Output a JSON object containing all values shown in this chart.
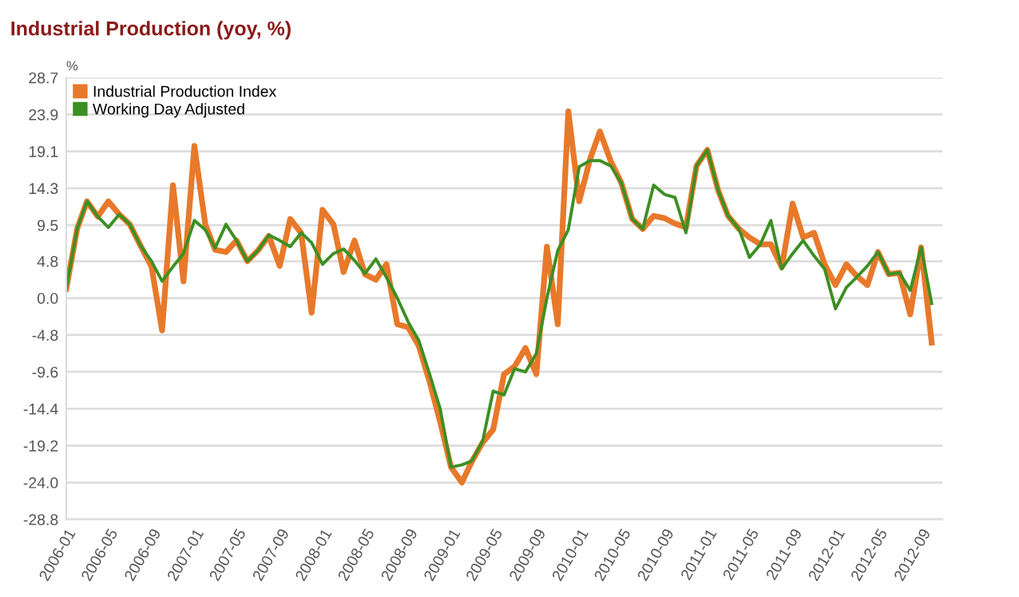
{
  "chart_data": {
    "type": "line",
    "title": "Industrial Production (yoy, %)",
    "ylabel": "%",
    "x": [
      "2006-01",
      "2006-02",
      "2006-03",
      "2006-04",
      "2006-05",
      "2006-06",
      "2006-07",
      "2006-08",
      "2006-09",
      "2006-10",
      "2006-11",
      "2006-12",
      "2007-01",
      "2007-02",
      "2007-03",
      "2007-04",
      "2007-05",
      "2007-06",
      "2007-07",
      "2007-08",
      "2007-09",
      "2007-10",
      "2007-11",
      "2007-12",
      "2008-01",
      "2008-02",
      "2008-03",
      "2008-04",
      "2008-05",
      "2008-06",
      "2008-07",
      "2008-08",
      "2008-09",
      "2008-10",
      "2008-11",
      "2008-12",
      "2009-01",
      "2009-02",
      "2009-03",
      "2009-04",
      "2009-05",
      "2009-06",
      "2009-07",
      "2009-08",
      "2009-09",
      "2009-10",
      "2009-11",
      "2009-12",
      "2010-01",
      "2010-02",
      "2010-03",
      "2010-04",
      "2010-05",
      "2010-06",
      "2010-07",
      "2010-08",
      "2010-09",
      "2010-10",
      "2010-11",
      "2010-12",
      "2011-01",
      "2011-02",
      "2011-03",
      "2011-04",
      "2011-05",
      "2011-06",
      "2011-07",
      "2011-08",
      "2011-09",
      "2011-10",
      "2011-11",
      "2011-12",
      "2012-01",
      "2012-02",
      "2012-03",
      "2012-04",
      "2012-05",
      "2012-06",
      "2012-07",
      "2012-08",
      "2012-09",
      "2012-10"
    ],
    "series": [
      {
        "name": "Industrial Production Index",
        "color": "#e8792a",
        "values": [
          1.2,
          9.0,
          12.6,
          10.6,
          12.6,
          10.9,
          9.6,
          6.8,
          4.1,
          -4.2,
          14.7,
          2.2,
          19.8,
          9.6,
          6.3,
          6.0,
          7.5,
          4.8,
          6.2,
          8.1,
          4.2,
          10.3,
          8.5,
          -1.9,
          11.5,
          9.6,
          3.4,
          7.5,
          3.1,
          2.4,
          4.4,
          -3.4,
          -3.8,
          -6.2,
          -10.9,
          -16.1,
          -22.0,
          -24.0,
          -21.3,
          -18.8,
          -17.1,
          -9.9,
          -8.9,
          -6.5,
          -9.9,
          6.7,
          -3.4,
          24.3,
          12.6,
          18.1,
          21.7,
          17.8,
          15.0,
          10.3,
          9.0,
          10.7,
          10.4,
          9.7,
          9.2,
          17.2,
          19.3,
          14.0,
          10.7,
          9.0,
          7.9,
          7.0,
          7.0,
          4.0,
          12.3,
          7.9,
          8.5,
          4.4,
          1.7,
          4.4,
          2.9,
          1.7,
          6.0,
          3.1,
          3.3,
          -2.1,
          6.6,
          -5.8
        ]
      },
      {
        "name": "Working Day Adjusted",
        "color": "#3d8f23",
        "values": [
          1.2,
          9.0,
          12.6,
          10.6,
          9.2,
          10.9,
          9.6,
          6.8,
          4.8,
          2.2,
          4.1,
          5.8,
          10.1,
          8.9,
          6.5,
          9.6,
          7.5,
          4.8,
          6.2,
          8.2,
          7.5,
          6.7,
          8.5,
          7.2,
          4.4,
          5.8,
          6.4,
          4.9,
          3.2,
          5.1,
          2.7,
          0.0,
          -3.1,
          -5.5,
          -9.9,
          -14.4,
          -22.0,
          -21.7,
          -21.2,
          -18.6,
          -12.1,
          -12.6,
          -9.2,
          -9.6,
          -7.2,
          0.0,
          6.2,
          8.9,
          17.1,
          17.9,
          17.9,
          17.2,
          15.0,
          10.3,
          9.0,
          14.7,
          13.5,
          13.1,
          8.5,
          17.2,
          19.3,
          14.0,
          10.7,
          9.0,
          5.3,
          7.0,
          10.1,
          3.8,
          5.8,
          7.5,
          5.5,
          3.8,
          -1.4,
          1.4,
          2.7,
          4.2,
          6.0,
          3.1,
          3.3,
          1.0,
          6.6,
          -0.7
        ]
      }
    ],
    "xlim": [
      "2006-01",
      "2012-11"
    ],
    "xticks": [
      "2006-01",
      "2006-05",
      "2006-09",
      "2007-01",
      "2007-05",
      "2007-09",
      "2008-01",
      "2008-05",
      "2008-09",
      "2009-01",
      "2009-05",
      "2009-09",
      "2010-01",
      "2010-05",
      "2010-09",
      "2011-01",
      "2011-05",
      "2011-09",
      "2012-01",
      "2012-05",
      "2012-09"
    ],
    "ylim": [
      -28.8,
      28.7
    ],
    "yticks": [
      {
        "value": 28.7,
        "label": "28.7"
      },
      {
        "value": 23.9,
        "label": "23.9"
      },
      {
        "value": 19.1,
        "label": "19.1"
      },
      {
        "value": 14.3,
        "label": "14.3"
      },
      {
        "value": 9.5,
        "label": "9.5"
      },
      {
        "value": 4.8,
        "label": "4.8"
      },
      {
        "value": 0.0,
        "label": "0.0"
      },
      {
        "value": -4.8,
        "label": "-4.8"
      },
      {
        "value": -9.6,
        "label": "-9.6"
      },
      {
        "value": -14.4,
        "label": "-14.4"
      },
      {
        "value": -19.2,
        "label": "-19.2"
      },
      {
        "value": -24.0,
        "label": "-24.0"
      },
      {
        "value": -28.8,
        "label": "-28.8"
      }
    ],
    "grid": "y",
    "legend": "top left",
    "marker": "none",
    "line_style": "solid"
  }
}
